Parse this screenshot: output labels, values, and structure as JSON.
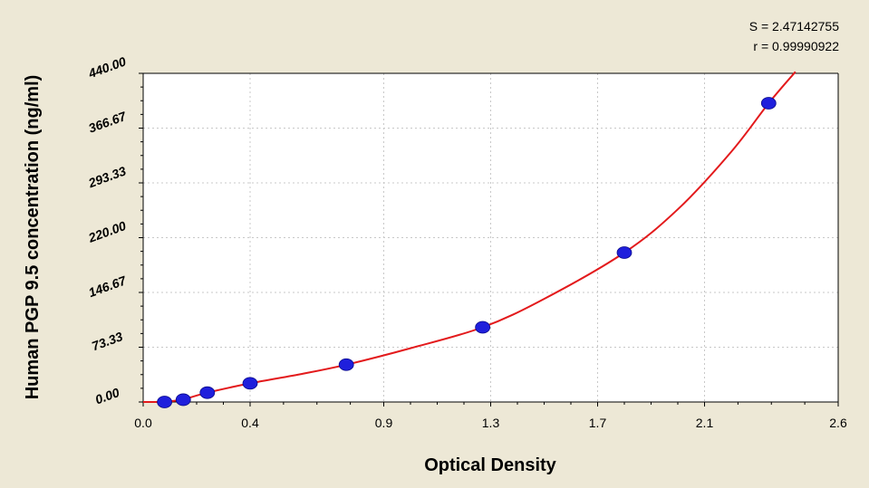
{
  "stats": {
    "s_line": "S = 2.47142755",
    "r_line": "r = 0.99990922"
  },
  "colors": {
    "background": "#ede8d6",
    "plot_area": "#ffffff",
    "curve": "#e31a1c",
    "points": "#1f1fdc",
    "grid": "#c8c8c8"
  },
  "chart_data": {
    "type": "scatter",
    "xlabel": "Optical Density",
    "ylabel": "Human PGP 9.5 concentration (ng/ml)",
    "xlim": [
      0.0,
      2.6
    ],
    "ylim": [
      0.0,
      440.0
    ],
    "x_ticks": [
      0.0,
      0.4,
      0.9,
      1.3,
      1.7,
      2.1,
      2.6
    ],
    "x_tick_labels": [
      "0.0",
      "0.4",
      "0.9",
      "1.3",
      "1.7",
      "2.1",
      "2.6"
    ],
    "y_ticks": [
      0.0,
      73.33,
      146.67,
      220.0,
      293.33,
      366.67,
      440.0
    ],
    "y_tick_labels": [
      "0.00",
      "73.33",
      "146.67",
      "220.00",
      "293.33",
      "366.67",
      "440.00"
    ],
    "grid": true,
    "points": [
      {
        "x": 0.08,
        "y": 0.0
      },
      {
        "x": 0.15,
        "y": 3.1
      },
      {
        "x": 0.24,
        "y": 12.5
      },
      {
        "x": 0.4,
        "y": 25.0
      },
      {
        "x": 0.76,
        "y": 50.0
      },
      {
        "x": 1.27,
        "y": 100.0
      },
      {
        "x": 1.8,
        "y": 200.0
      },
      {
        "x": 2.34,
        "y": 400.0
      }
    ],
    "fit_curve": [
      [
        0.0,
        0.0
      ],
      [
        0.08,
        0.4
      ],
      [
        0.15,
        3.5
      ],
      [
        0.24,
        12.5
      ],
      [
        0.4,
        25.0
      ],
      [
        0.6,
        38.0
      ],
      [
        0.76,
        50.0
      ],
      [
        1.0,
        72.0
      ],
      [
        1.27,
        100.0
      ],
      [
        1.5,
        138.0
      ],
      [
        1.8,
        200.0
      ],
      [
        2.0,
        258.0
      ],
      [
        2.2,
        335.0
      ],
      [
        2.34,
        400.0
      ],
      [
        2.44,
        442.0
      ]
    ]
  }
}
